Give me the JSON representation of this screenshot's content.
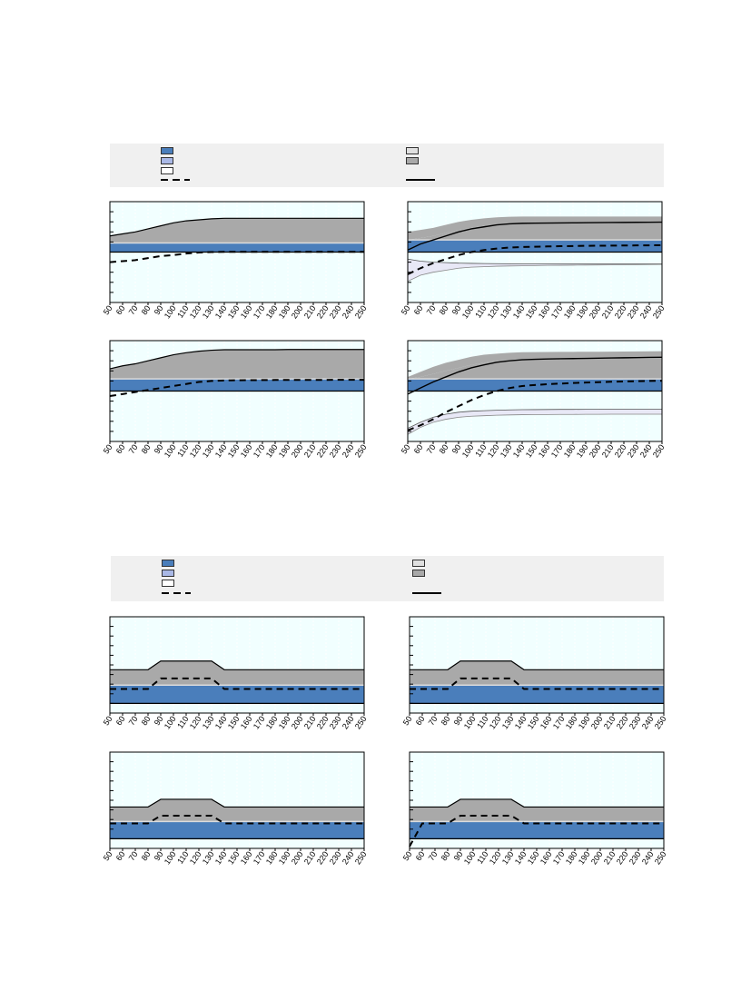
{
  "colors": {
    "blue": "#4a7ebb",
    "light_blue": "#a9b8e6",
    "white_fill": "#ffffff",
    "light_gray": "#e0e0e0",
    "gray": "#a9a9a9",
    "plot_bg": "#f1ffff",
    "panel_border": "#000000",
    "legend_bg": "#f0f0f0",
    "light_purple_band": "#e8e8f6"
  },
  "legends": [
    {
      "id": "top",
      "items": [
        {
          "kind": "swatch",
          "color": "blue",
          "label": ""
        },
        {
          "kind": "swatch",
          "color": "light_blue",
          "label": ""
        },
        {
          "kind": "swatch",
          "color": "white_fill",
          "label": ""
        },
        {
          "kind": "dashed-line",
          "label": ""
        },
        {
          "kind": "swatch",
          "color": "light_gray",
          "label": ""
        },
        {
          "kind": "swatch",
          "color": "gray",
          "label": ""
        },
        {
          "kind": "solid-line",
          "label": ""
        }
      ]
    },
    {
      "id": "bottom",
      "items": [
        {
          "kind": "swatch",
          "color": "blue",
          "label": ""
        },
        {
          "kind": "swatch",
          "color": "light_blue",
          "label": ""
        },
        {
          "kind": "swatch",
          "color": "white_fill",
          "label": ""
        },
        {
          "kind": "dashed-line",
          "label": ""
        },
        {
          "kind": "swatch",
          "color": "light_gray",
          "label": ""
        },
        {
          "kind": "swatch",
          "color": "gray",
          "label": ""
        },
        {
          "kind": "solid-line",
          "label": ""
        }
      ]
    }
  ],
  "chart_data": [
    {
      "type": "area",
      "x": [
        50,
        60,
        70,
        80,
        90,
        100,
        110,
        120,
        130,
        140,
        150,
        160,
        170,
        180,
        190,
        200,
        210,
        220,
        230,
        240,
        250
      ],
      "xlim": [
        50,
        250
      ],
      "ylim": [
        -5,
        5
      ],
      "grid": true,
      "series": [
        {
          "role": "blue-area",
          "values": [
            0.9,
            0.9,
            0.9,
            0.9,
            0.9,
            0.9,
            0.9,
            0.9,
            0.9,
            0.9,
            0.9,
            0.9,
            0.9,
            0.9,
            0.9,
            0.9,
            0.9,
            0.9,
            0.9,
            0.9,
            0.9
          ]
        },
        {
          "role": "gray-band-top",
          "values": [
            1.6,
            1.8,
            2.0,
            2.3,
            2.6,
            2.9,
            3.1,
            3.2,
            3.3,
            3.35,
            3.35,
            3.35,
            3.35,
            3.35,
            3.35,
            3.35,
            3.35,
            3.35,
            3.35,
            3.35,
            3.35
          ]
        },
        {
          "role": "dashed",
          "values": [
            -1.0,
            -0.9,
            -0.8,
            -0.6,
            -0.4,
            -0.3,
            -0.15,
            -0.05,
            0,
            0.02,
            0.02,
            0.02,
            0.02,
            0.02,
            0.02,
            0.02,
            0.02,
            0.02,
            0.02,
            0.02,
            0.02
          ]
        }
      ]
    },
    {
      "type": "area",
      "x": [
        50,
        60,
        70,
        80,
        90,
        100,
        110,
        120,
        130,
        140,
        150,
        160,
        170,
        180,
        190,
        200,
        210,
        220,
        230,
        240,
        250
      ],
      "xlim": [
        50,
        250
      ],
      "ylim": [
        -5,
        5
      ],
      "grid": true,
      "series": [
        {
          "role": "blue-area",
          "values": [
            1.2,
            1.2,
            1.2,
            1.2,
            1.2,
            1.2,
            1.2,
            1.2,
            1.2,
            1.2,
            1.2,
            1.2,
            1.2,
            1.2,
            1.2,
            1.2,
            1.2,
            1.2,
            1.2,
            1.2,
            1.2
          ]
        },
        {
          "role": "gray-band-top",
          "values": [
            2.0,
            2.2,
            2.4,
            2.7,
            3.0,
            3.2,
            3.35,
            3.45,
            3.5,
            3.52,
            3.52,
            3.52,
            3.52,
            3.52,
            3.52,
            3.52,
            3.52,
            3.52,
            3.52,
            3.52,
            3.52
          ]
        },
        {
          "role": "gray-band-bottom",
          "values": [
            1.2,
            1.4,
            1.6,
            1.9,
            2.2,
            2.4,
            2.6,
            2.7,
            2.8,
            2.85,
            2.87,
            2.88,
            2.89,
            2.9,
            2.9,
            2.9,
            2.9,
            2.9,
            2.9,
            2.9,
            2.9
          ]
        },
        {
          "role": "solid",
          "values": [
            0.2,
            0.8,
            1.2,
            1.6,
            2.0,
            2.3,
            2.5,
            2.7,
            2.8,
            2.85,
            2.87,
            2.88,
            2.89,
            2.9,
            2.91,
            2.92,
            2.93,
            2.94,
            2.95,
            2.96,
            2.97
          ]
        },
        {
          "role": "dashed",
          "values": [
            -2.2,
            -1.6,
            -1.1,
            -0.7,
            -0.3,
            0.0,
            0.2,
            0.35,
            0.45,
            0.5,
            0.53,
            0.56,
            0.58,
            0.6,
            0.62,
            0.63,
            0.64,
            0.65,
            0.66,
            0.67,
            0.68
          ]
        },
        {
          "role": "purple-band-top",
          "values": [
            -0.7,
            -0.9,
            -1.0,
            -1.05,
            -1.1,
            -1.12,
            -1.14,
            -1.15,
            -1.16,
            -1.17,
            -1.17,
            -1.17,
            -1.17,
            -1.17,
            -1.17,
            -1.17,
            -1.17,
            -1.17,
            -1.17,
            -1.17,
            -1.17
          ]
        },
        {
          "role": "purple-band-bottom",
          "values": [
            -2.9,
            -2.3,
            -2.0,
            -1.8,
            -1.6,
            -1.5,
            -1.45,
            -1.4,
            -1.38,
            -1.36,
            -1.34,
            -1.32,
            -1.31,
            -1.3,
            -1.29,
            -1.28,
            -1.27,
            -1.26,
            -1.25,
            -1.24,
            -1.23
          ]
        }
      ]
    },
    {
      "type": "area",
      "x": [
        50,
        60,
        70,
        80,
        90,
        100,
        110,
        120,
        130,
        140,
        150,
        160,
        170,
        180,
        190,
        200,
        210,
        220,
        230,
        240,
        250
      ],
      "xlim": [
        50,
        250
      ],
      "ylim": [
        -5,
        5
      ],
      "grid": true,
      "series": [
        {
          "role": "blue-area",
          "values": [
            1.2,
            1.2,
            1.2,
            1.2,
            1.2,
            1.2,
            1.2,
            1.2,
            1.2,
            1.2,
            1.2,
            1.2,
            1.2,
            1.2,
            1.2,
            1.2,
            1.2,
            1.2,
            1.2,
            1.2,
            1.2
          ]
        },
        {
          "role": "gray-band-top",
          "values": [
            2.2,
            2.5,
            2.7,
            3.0,
            3.3,
            3.6,
            3.8,
            3.95,
            4.05,
            4.1,
            4.1,
            4.1,
            4.1,
            4.1,
            4.12,
            4.12,
            4.12,
            4.12,
            4.12,
            4.12,
            4.12
          ]
        },
        {
          "role": "dashed",
          "values": [
            -0.5,
            -0.3,
            -0.1,
            0.1,
            0.3,
            0.5,
            0.7,
            0.9,
            1.0,
            1.05,
            1.07,
            1.08,
            1.09,
            1.1,
            1.1,
            1.1,
            1.1,
            1.1,
            1.12,
            1.12,
            1.12
          ]
        }
      ]
    },
    {
      "type": "area",
      "x": [
        50,
        60,
        70,
        80,
        90,
        100,
        110,
        120,
        130,
        140,
        150,
        160,
        170,
        180,
        190,
        200,
        210,
        220,
        230,
        240,
        250
      ],
      "xlim": [
        50,
        250
      ],
      "ylim": [
        -5,
        5
      ],
      "grid": true,
      "series": [
        {
          "role": "blue-area",
          "values": [
            1.2,
            1.2,
            1.2,
            1.2,
            1.2,
            1.2,
            1.2,
            1.2,
            1.2,
            1.2,
            1.2,
            1.2,
            1.2,
            1.2,
            1.2,
            1.2,
            1.2,
            1.2,
            1.2,
            1.2,
            1.2
          ]
        },
        {
          "role": "gray-band-top",
          "values": [
            1.4,
            1.9,
            2.4,
            2.8,
            3.1,
            3.4,
            3.6,
            3.7,
            3.8,
            3.85,
            3.86,
            3.87,
            3.88,
            3.89,
            3.9,
            3.9,
            3.91,
            3.92,
            3.93,
            3.94,
            3.95
          ]
        },
        {
          "role": "gray-band-bottom",
          "values": [
            1.2,
            1.4,
            1.7,
            2.0,
            2.3,
            2.6,
            2.8,
            3.0,
            3.1,
            3.15,
            3.17,
            3.19,
            3.2,
            3.21,
            3.22,
            3.23,
            3.24,
            3.25,
            3.26,
            3.27,
            3.28
          ]
        },
        {
          "role": "solid",
          "values": [
            -0.3,
            0.3,
            0.9,
            1.4,
            1.9,
            2.3,
            2.6,
            2.85,
            3.0,
            3.1,
            3.15,
            3.18,
            3.2,
            3.22,
            3.24,
            3.26,
            3.28,
            3.3,
            3.32,
            3.34,
            3.35
          ]
        },
        {
          "role": "dashed",
          "values": [
            -3.9,
            -3.4,
            -2.8,
            -2.1,
            -1.5,
            -0.9,
            -0.4,
            0.0,
            0.3,
            0.5,
            0.6,
            0.68,
            0.74,
            0.8,
            0.84,
            0.88,
            0.92,
            0.95,
            0.98,
            1.0,
            1.02
          ]
        },
        {
          "role": "purple-band-top",
          "values": [
            -3.7,
            -3.1,
            -2.6,
            -2.3,
            -2.1,
            -2.0,
            -1.95,
            -1.9,
            -1.87,
            -1.85,
            -1.84,
            -1.83,
            -1.82,
            -1.82,
            -1.81,
            -1.81,
            -1.8,
            -1.8,
            -1.8,
            -1.8,
            -1.8
          ]
        },
        {
          "role": "purple-band-bottom",
          "values": [
            -4.3,
            -3.6,
            -3.1,
            -2.8,
            -2.6,
            -2.5,
            -2.45,
            -2.4,
            -2.37,
            -2.35,
            -2.34,
            -2.33,
            -2.32,
            -2.32,
            -2.31,
            -2.31,
            -2.3,
            -2.3,
            -2.3,
            -2.3,
            -2.3
          ]
        }
      ]
    },
    {
      "type": "area",
      "x": [
        50,
        60,
        70,
        80,
        90,
        100,
        110,
        120,
        130,
        140,
        150,
        160,
        170,
        180,
        190,
        200,
        210,
        220,
        230,
        240,
        250
      ],
      "xlim": [
        50,
        250
      ],
      "ylim": [
        -1,
        9
      ],
      "grid": true,
      "series": [
        {
          "role": "blue-area",
          "values": [
            1.9,
            1.9,
            1.9,
            1.9,
            1.9,
            1.9,
            1.9,
            1.9,
            1.9,
            1.9,
            1.9,
            1.9,
            1.9,
            1.9,
            1.9,
            1.9,
            1.9,
            1.9,
            1.9,
            1.9,
            1.9
          ]
        },
        {
          "role": "gray-band-top",
          "values": [
            3.5,
            3.5,
            3.5,
            3.5,
            4.4,
            4.4,
            4.4,
            4.4,
            4.4,
            3.5,
            3.5,
            3.5,
            3.5,
            3.5,
            3.5,
            3.5,
            3.5,
            3.5,
            3.5,
            3.5,
            3.5
          ]
        },
        {
          "role": "dashed",
          "values": [
            1.5,
            1.5,
            1.5,
            1.5,
            2.6,
            2.6,
            2.6,
            2.6,
            2.6,
            1.5,
            1.5,
            1.5,
            1.5,
            1.5,
            1.5,
            1.5,
            1.5,
            1.5,
            1.5,
            1.5,
            1.5
          ]
        }
      ]
    },
    {
      "type": "area",
      "x": [
        50,
        60,
        70,
        80,
        90,
        100,
        110,
        120,
        130,
        140,
        150,
        160,
        170,
        180,
        190,
        200,
        210,
        220,
        230,
        240,
        250
      ],
      "xlim": [
        50,
        250
      ],
      "ylim": [
        -1,
        9
      ],
      "grid": true,
      "series": [
        {
          "role": "blue-area",
          "values": [
            1.9,
            1.9,
            1.9,
            1.9,
            1.9,
            1.9,
            1.9,
            1.9,
            1.9,
            1.9,
            1.9,
            1.9,
            1.9,
            1.9,
            1.9,
            1.9,
            1.9,
            1.9,
            1.9,
            1.9,
            1.9
          ]
        },
        {
          "role": "gray-band-top",
          "values": [
            3.5,
            3.5,
            3.5,
            3.5,
            4.4,
            4.4,
            4.4,
            4.4,
            4.4,
            3.5,
            3.5,
            3.5,
            3.5,
            3.5,
            3.5,
            3.5,
            3.5,
            3.5,
            3.5,
            3.5,
            3.5
          ]
        },
        {
          "role": "dashed",
          "values": [
            1.5,
            1.5,
            1.5,
            1.5,
            2.6,
            2.6,
            2.6,
            2.6,
            2.6,
            1.5,
            1.5,
            1.5,
            1.5,
            1.5,
            1.5,
            1.5,
            1.5,
            1.5,
            1.5,
            1.5,
            1.5
          ]
        }
      ]
    },
    {
      "type": "area",
      "x": [
        50,
        60,
        70,
        80,
        90,
        100,
        110,
        120,
        130,
        140,
        150,
        160,
        170,
        180,
        190,
        200,
        210,
        220,
        230,
        240,
        250
      ],
      "xlim": [
        50,
        250
      ],
      "ylim": [
        -1,
        9
      ],
      "grid": true,
      "series": [
        {
          "role": "blue-area",
          "values": [
            1.8,
            1.8,
            1.8,
            1.8,
            1.8,
            1.8,
            1.8,
            1.8,
            1.8,
            1.8,
            1.8,
            1.8,
            1.8,
            1.8,
            1.8,
            1.8,
            1.8,
            1.8,
            1.8,
            1.8,
            1.8
          ]
        },
        {
          "role": "gray-band-top",
          "values": [
            3.3,
            3.3,
            3.3,
            3.3,
            4.1,
            4.1,
            4.1,
            4.1,
            4.1,
            3.3,
            3.3,
            3.3,
            3.3,
            3.3,
            3.3,
            3.3,
            3.3,
            3.3,
            3.3,
            3.3,
            3.3
          ]
        },
        {
          "role": "dashed",
          "values": [
            1.6,
            1.6,
            1.6,
            1.6,
            2.4,
            2.4,
            2.4,
            2.4,
            2.4,
            1.6,
            1.6,
            1.6,
            1.6,
            1.6,
            1.6,
            1.6,
            1.6,
            1.6,
            1.6,
            1.6,
            1.6
          ]
        }
      ]
    },
    {
      "type": "area",
      "x": [
        50,
        60,
        70,
        80,
        90,
        100,
        110,
        120,
        130,
        140,
        150,
        160,
        170,
        180,
        190,
        200,
        210,
        220,
        230,
        240,
        250
      ],
      "xlim": [
        50,
        250
      ],
      "ylim": [
        -1,
        9
      ],
      "grid": true,
      "series": [
        {
          "role": "blue-area",
          "values": [
            1.8,
            1.8,
            1.8,
            1.8,
            1.8,
            1.8,
            1.8,
            1.8,
            1.8,
            1.8,
            1.8,
            1.8,
            1.8,
            1.8,
            1.8,
            1.8,
            1.8,
            1.8,
            1.8,
            1.8,
            1.8
          ]
        },
        {
          "role": "gray-band-top",
          "values": [
            3.3,
            3.3,
            3.3,
            3.3,
            4.1,
            4.1,
            4.1,
            4.1,
            4.1,
            3.3,
            3.3,
            3.3,
            3.3,
            3.3,
            3.3,
            3.3,
            3.3,
            3.3,
            3.3,
            3.3,
            3.3
          ]
        },
        {
          "role": "dashed",
          "values": [
            -0.8,
            1.6,
            1.6,
            1.6,
            2.4,
            2.4,
            2.4,
            2.4,
            2.4,
            1.6,
            1.6,
            1.6,
            1.6,
            1.6,
            1.6,
            1.6,
            1.6,
            1.6,
            1.6,
            1.6,
            1.6
          ]
        }
      ]
    }
  ]
}
